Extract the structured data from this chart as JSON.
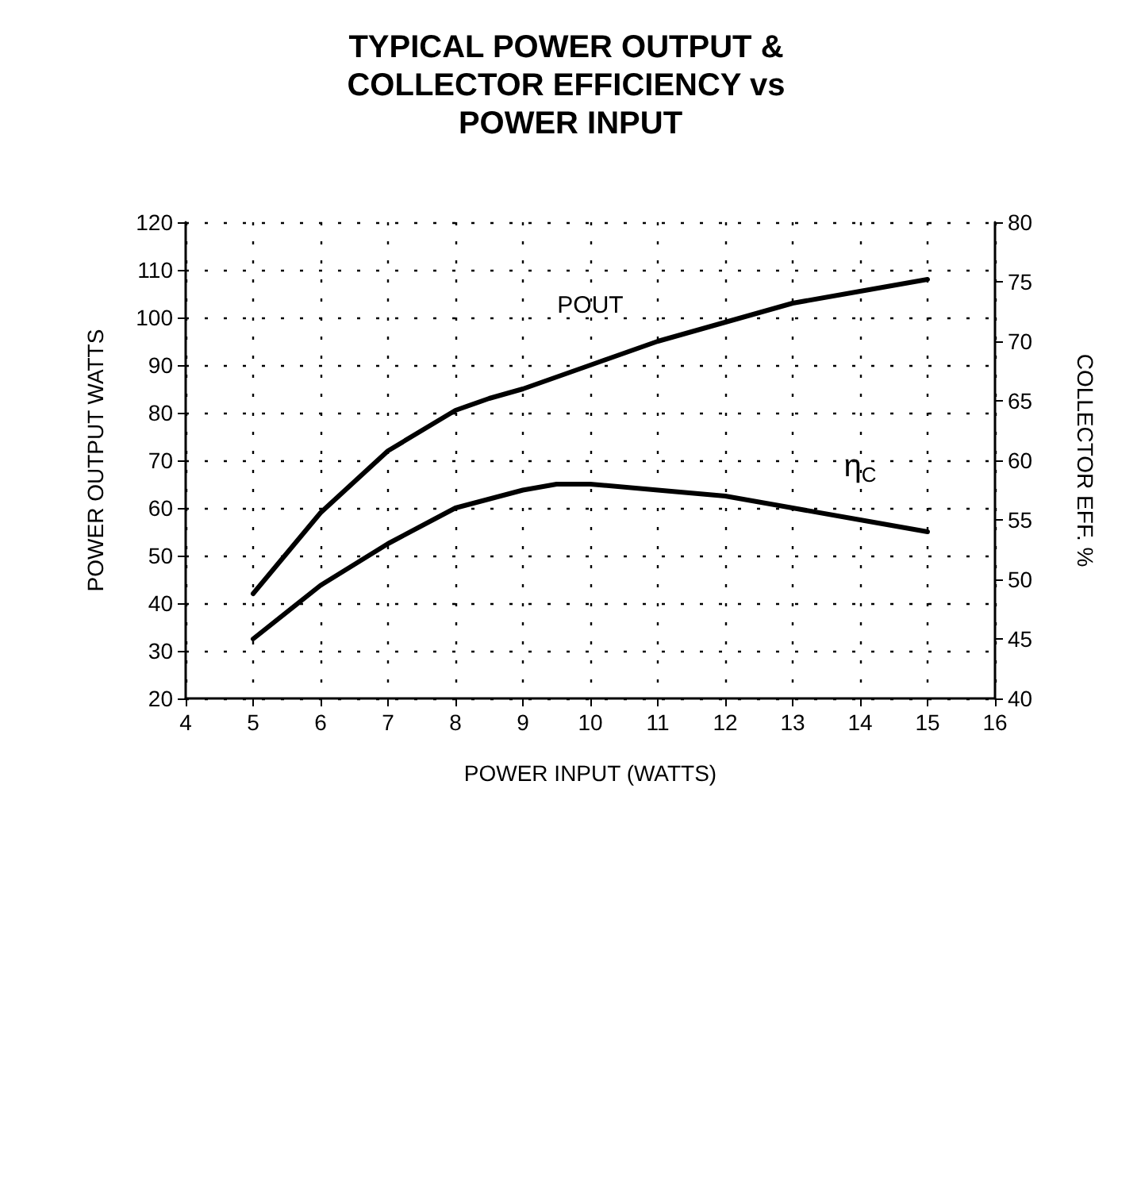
{
  "chart_data": {
    "type": "line",
    "title": "TYPICAL POWER OUTPUT & COLLECTOR EFFICIENCY vs POWER INPUT",
    "xlabel": "POWER INPUT (WATTS)",
    "ylabel": "POWER OUTPUT WATTS",
    "y2label": "COLLECTOR EFF. %",
    "series": [
      {
        "name": "POUT",
        "color": "#000000",
        "x": [
          5,
          6,
          7,
          8,
          8.5,
          9,
          10,
          11,
          12,
          13,
          14,
          15
        ],
        "values": [
          42,
          59,
          72,
          80.5,
          83,
          85,
          90,
          95,
          99,
          103,
          105.5,
          108
        ]
      },
      {
        "name": "η$_{C}$",
        "color": "#000000",
        "axis": "y2",
        "x": [
          5,
          6,
          7,
          8,
          9,
          9.5,
          10,
          11,
          12,
          13,
          14,
          15
        ],
        "values": [
          45,
          49.5,
          53,
          56,
          57.5,
          58,
          58,
          57.5,
          57,
          56,
          55,
          54
        ]
      }
    ],
    "xlim": [
      4,
      16
    ],
    "xticks": [
      4,
      5,
      6,
      7,
      8,
      9,
      10,
      11,
      12,
      13,
      14,
      15,
      16
    ],
    "ylim": [
      20,
      120
    ],
    "yticks": [
      20,
      30,
      40,
      50,
      60,
      70,
      80,
      90,
      100,
      110,
      120
    ],
    "y2lim": [
      40,
      80
    ],
    "y2ticks": [
      40,
      45,
      50,
      55,
      60,
      65,
      70,
      75,
      80
    ],
    "grid": true,
    "marker": "none",
    "line_style": "solid"
  }
}
